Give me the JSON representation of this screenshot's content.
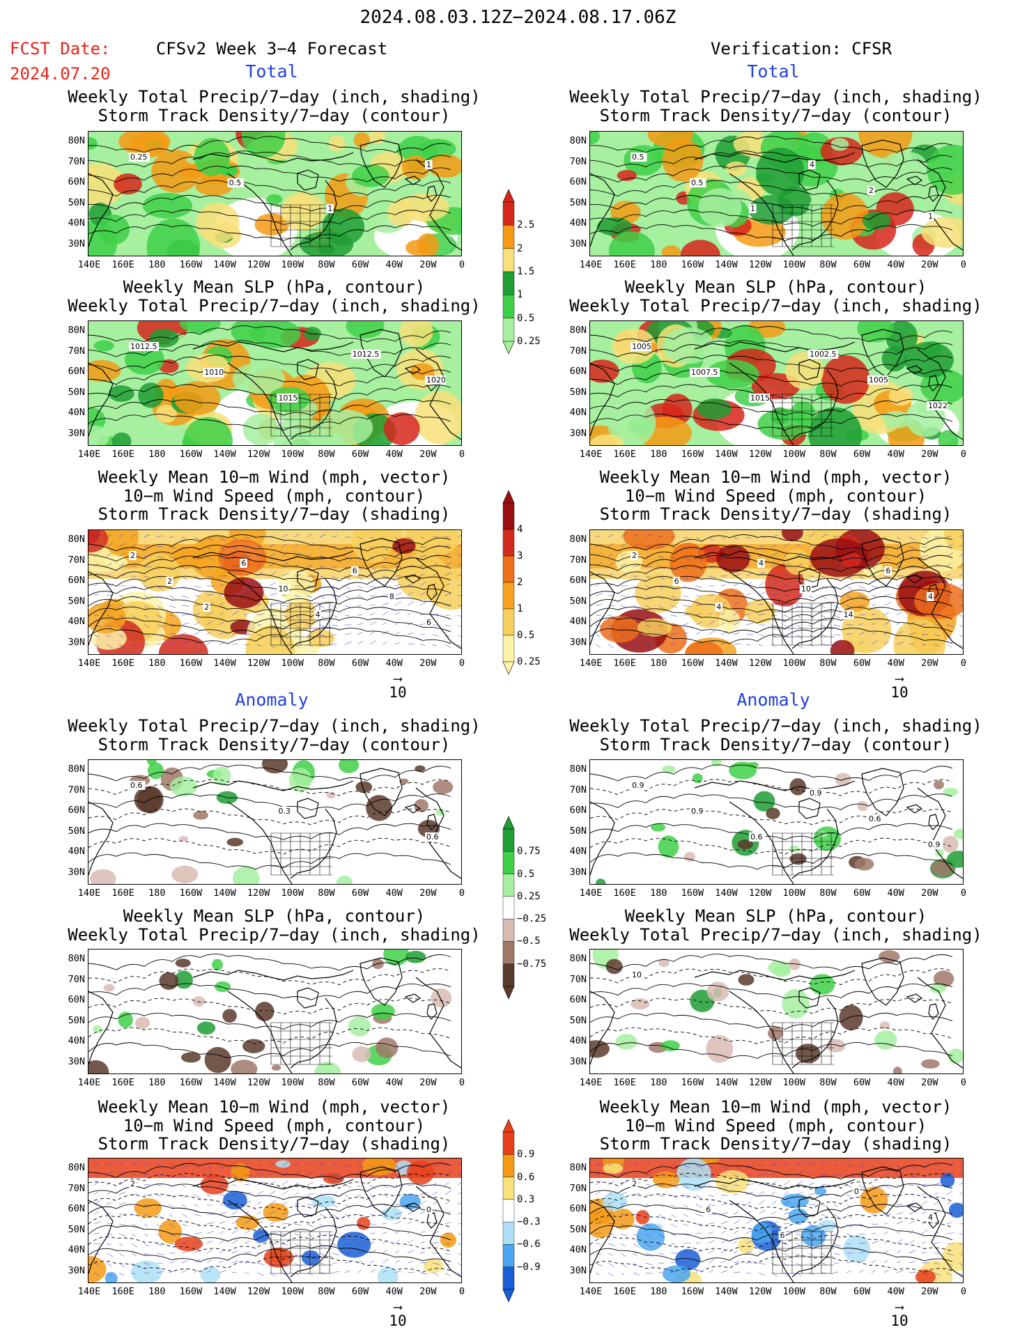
{
  "header": {
    "date_range": "2024.08.03.12Z−2024.08.17.06Z",
    "fcst_label": "FCST Date:",
    "fcst_date": "2024.07.20",
    "left_title": "CFSv2 Week 3−4 Forecast",
    "right_title": "Verification: CFSR",
    "total_label": "Total",
    "anomaly_label": "Anomaly"
  },
  "axes": {
    "lat_ticks": [
      "80N",
      "70N",
      "60N",
      "50N",
      "40N",
      "30N"
    ],
    "lon_ticks": [
      "140E",
      "160E",
      "180",
      "160W",
      "140W",
      "120W",
      "100W",
      "80W",
      "60W",
      "40W",
      "20W",
      "0"
    ]
  },
  "panels": {
    "t_left_1": {
      "line1": "Weekly Total Precip/7−day (inch, shading)",
      "line2": "Storm Track Density/7−day (contour)",
      "labels": [
        "0.25",
        "0.5",
        "1",
        "1"
      ]
    },
    "t_right_1": {
      "line1": "Weekly Total Precip/7−day (inch, shading)",
      "line2": "Storm Track Density/7−day (contour)",
      "labels": [
        "0.5",
        "0.5",
        "1",
        "4",
        "2",
        "1"
      ]
    },
    "t_left_2": {
      "line1": "Weekly Mean SLP (hPa, contour)",
      "line2": "Weekly Total Precip/7−day (inch, shading)",
      "labels": [
        "1012.5",
        "1010",
        "1015",
        "1012.5",
        "1020"
      ]
    },
    "t_right_2": {
      "line1": "Weekly Mean SLP (hPa, contour)",
      "line2": "Weekly Total Precip/7−day (inch, shading)",
      "labels": [
        "1005",
        "1007.5",
        "1015",
        "1002.5",
        "1005",
        "1022"
      ]
    },
    "t_left_3": {
      "line1": "Weekly Mean 10−m Wind (mph, vector)",
      "line2": "10−m Wind Speed (mph, contour)",
      "line3": "Storm Track Density/7−day (shading)",
      "labels": [
        "2",
        "2",
        "2",
        "6",
        "10",
        "4",
        "6",
        "8",
        "6"
      ]
    },
    "t_right_3": {
      "line1": "Weekly Mean 10−m Wind (mph, vector)",
      "line2": "10−m Wind Speed (mph, contour)",
      "line3": "Storm Track Density/7−day (shading)",
      "labels": [
        "2",
        "6",
        "4",
        "4",
        "10",
        "14",
        "6",
        "4"
      ]
    },
    "a_left_1": {
      "line1": "Weekly Total Precip/7−day (inch, shading)",
      "line2": "Storm Track Density/7−day (contour)",
      "labels": [
        "0.6",
        "0.3",
        "0.6"
      ]
    },
    "a_right_1": {
      "line1": "Weekly Total Precip/7−day (inch, shading)",
      "line2": "Storm Track Density/7−day (contour)",
      "labels": [
        "0.9",
        "0.9",
        "0.6",
        "0.9",
        "0.6",
        "0.9"
      ]
    },
    "a_left_2": {
      "line1": "Weekly Mean SLP (hPa, contour)",
      "line2": "Weekly Total Precip/7−day (inch, shading)",
      "labels": []
    },
    "a_right_2": {
      "line1": "Weekly Mean SLP (hPa, contour)",
      "line2": "Weekly Total Precip/7−day (inch, shading)",
      "labels": [
        "10"
      ]
    },
    "a_left_3": {
      "line1": "Weekly Mean 10−m Wind (mph, vector)",
      "line2": "10−m Wind Speed (mph, contour)",
      "line3": "Storm Track Density/7−day (shading)",
      "labels": [
        "2",
        "0"
      ]
    },
    "a_right_3": {
      "line1": "Weekly Mean 10−m Wind (mph, vector)",
      "line2": "10−m Wind Speed (mph, contour)",
      "line3": "Storm Track Density/7−day (shading)",
      "labels": [
        "2",
        "6",
        "6",
        "0",
        "4"
      ]
    }
  },
  "vector_ref": "10",
  "colorbars": {
    "precip_total": {
      "labels": [
        "2.5",
        "2",
        "1.5",
        "1",
        "0.5",
        "0.25"
      ],
      "colors": [
        "#d6261a",
        "#f59a14",
        "#f8e07a",
        "#1e9e34",
        "#40d048",
        "#a6f0a0"
      ]
    },
    "storm_total": {
      "labels": [
        "4",
        "3",
        "2",
        "1",
        "0.5",
        "0.25"
      ],
      "colors": [
        "#9a0e12",
        "#d22a1c",
        "#ef6e1a",
        "#f5a320",
        "#f7cf5c",
        "#fbf3a8"
      ]
    },
    "precip_anom": {
      "labels": [
        "0.75",
        "0.5",
        "0.25",
        "−0.25",
        "−0.5",
        "−0.75"
      ],
      "colors": [
        "#1e9e34",
        "#40d048",
        "#a6f0a0",
        "#ffffff",
        "#d8bcb4",
        "#a07868",
        "#5a3a2c"
      ]
    },
    "storm_anom": {
      "labels": [
        "0.9",
        "0.6",
        "0.3",
        "−0.3",
        "−0.6",
        "−0.9"
      ],
      "colors": [
        "#e8401a",
        "#f59a14",
        "#f8e07a",
        "#ffffff",
        "#aee0f5",
        "#4aa6ee",
        "#1a5fd6"
      ]
    }
  }
}
